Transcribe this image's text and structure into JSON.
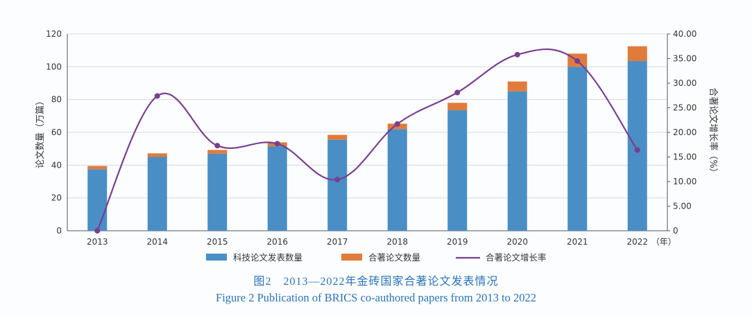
{
  "caption": {
    "cn": "图2　2013—2022年金砖国家合著论文发表情况",
    "en": "Figure 2    Publication of BRICS co-authored papers from 2013 to 2022"
  },
  "chart_data": {
    "type": "bar",
    "stacked": true,
    "categories": [
      "2013",
      "2014",
      "2015",
      "2016",
      "2017",
      "2018",
      "2019",
      "2020",
      "2021",
      "2022"
    ],
    "x_unit_label": "（年）",
    "left_axis": {
      "label": "论文数量（万篇）",
      "range": [
        0,
        120
      ],
      "ticks": [
        "0",
        "20",
        "40",
        "60",
        "80",
        "100",
        "120"
      ]
    },
    "right_axis": {
      "label": "合著论文增长率（%）",
      "range": [
        0,
        40
      ],
      "ticks": [
        "0",
        "5.00",
        "10.00",
        "15.00",
        "20.00",
        "25.00",
        "30.00",
        "35.00",
        "40.00"
      ]
    },
    "series": [
      {
        "name": "科技论文发表数量",
        "kind": "bar",
        "color": "#4a8ec6",
        "values": [
          37.5,
          45,
          47,
          51.5,
          55.5,
          62,
          73.5,
          85,
          100,
          103.5
        ]
      },
      {
        "name": "合著论文数量",
        "kind": "bar-stack",
        "color": "#e07b3c",
        "values": [
          2,
          2.2,
          2.3,
          2.4,
          3,
          3.3,
          4.5,
          6,
          8,
          9
        ]
      },
      {
        "name": "合著论文增长率",
        "kind": "line",
        "axis": "right",
        "color": "#7a3e8f",
        "values": [
          0,
          27.4,
          17.3,
          17.7,
          10.4,
          21.7,
          28.1,
          35.8,
          34.5,
          16.4
        ]
      }
    ],
    "grid": "horizontal",
    "legend_position": "bottom"
  }
}
